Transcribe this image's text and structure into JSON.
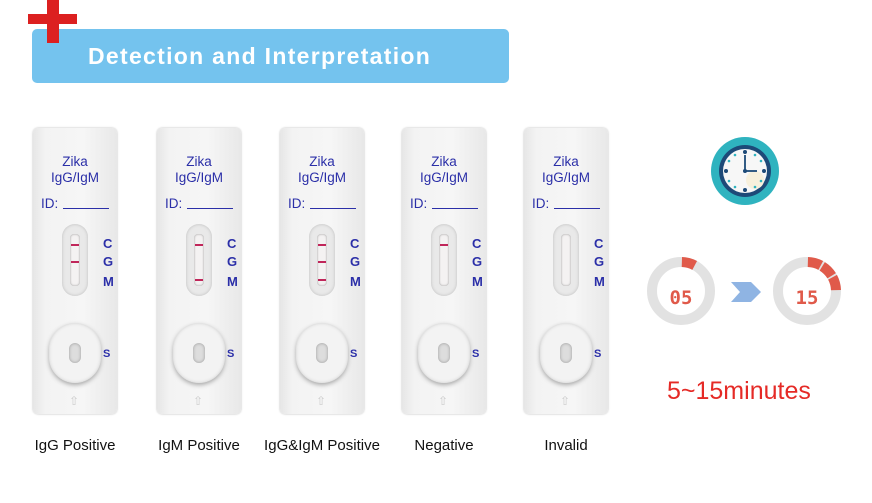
{
  "header": {
    "title": "Detection and Interpretation"
  },
  "colors": {
    "banner": "#74c3ee",
    "cross": "#dc2020",
    "cassette_text": "#2b2fa8",
    "test_line": "#c0265a",
    "timer": "#e05a4a",
    "duration_text": "#e52a26"
  },
  "cassettes": [
    {
      "brand": "Zika",
      "assay": "IgG/IgM",
      "id_label": "ID:",
      "markers": [
        "C",
        "G",
        "M"
      ],
      "sample_label": "S",
      "lines": {
        "C": true,
        "G": true,
        "M": false
      },
      "caption": "IgG Positive"
    },
    {
      "brand": "Zika",
      "assay": "IgG/IgM",
      "id_label": "ID:",
      "markers": [
        "C",
        "G",
        "M"
      ],
      "sample_label": "S",
      "lines": {
        "C": true,
        "G": false,
        "M": true
      },
      "caption": "IgM Positive"
    },
    {
      "brand": "Zika",
      "assay": "IgG/IgM",
      "id_label": "ID:",
      "markers": [
        "C",
        "G",
        "M"
      ],
      "sample_label": "S",
      "lines": {
        "C": true,
        "G": true,
        "M": true
      },
      "caption": "IgG&IgM Positive"
    },
    {
      "brand": "Zika",
      "assay": "IgG/IgM",
      "id_label": "ID:",
      "markers": [
        "C",
        "G",
        "M"
      ],
      "sample_label": "S",
      "lines": {
        "C": true,
        "G": false,
        "M": false
      },
      "caption": "Negative"
    },
    {
      "brand": "Zika",
      "assay": "IgG/IgM",
      "id_label": "ID:",
      "markers": [
        "C",
        "G",
        "M"
      ],
      "sample_label": "S",
      "lines": {
        "C": false,
        "G": false,
        "M": false
      },
      "caption": "Invalid"
    }
  ],
  "timing": {
    "icon": "clock-icon",
    "start": "05",
    "end": "15",
    "start_fraction": 0.083,
    "end_fraction": 0.25,
    "duration": "5~15minutes"
  }
}
